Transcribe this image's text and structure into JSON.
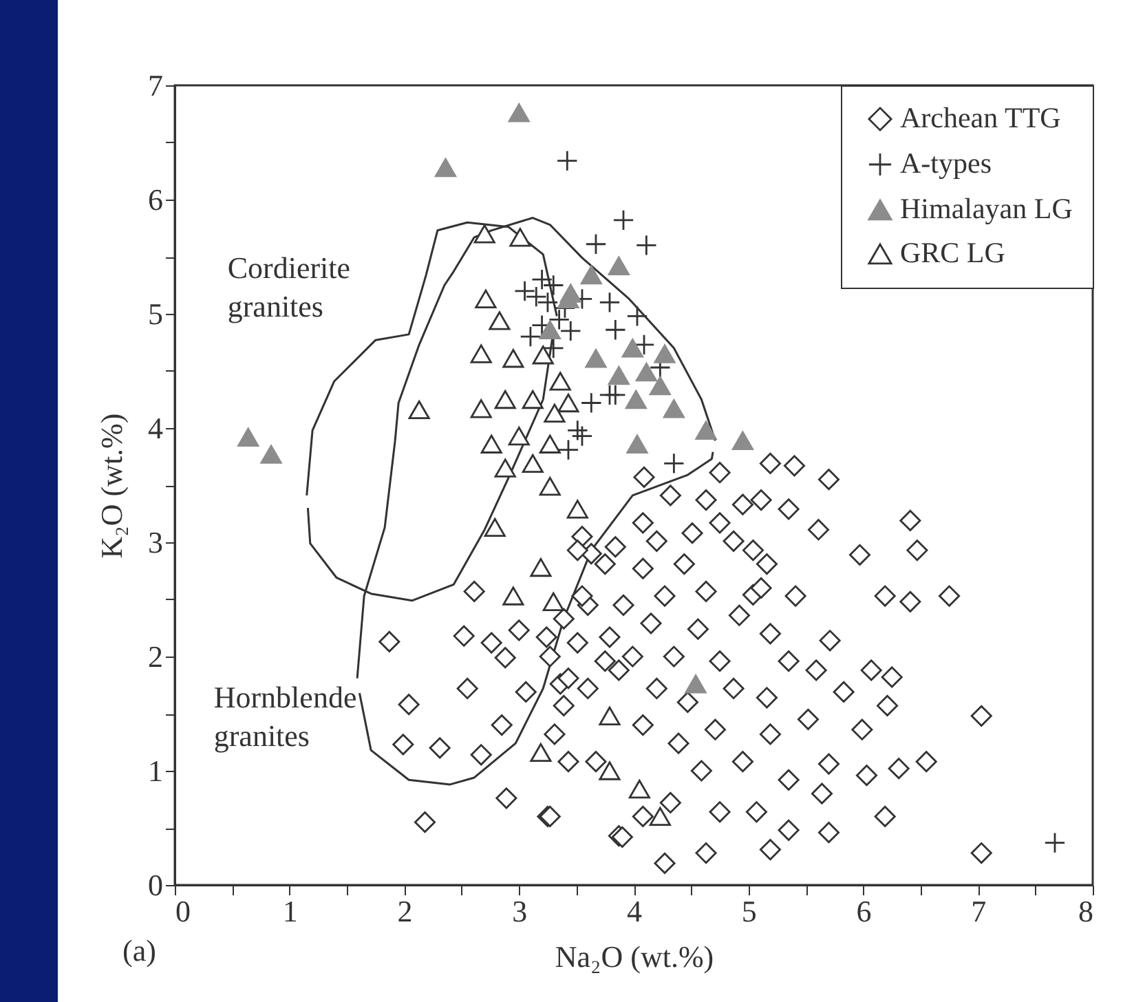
{
  "chart_data": {
    "type": "scatter",
    "xlabel": "Na₂O (wt.%)",
    "ylabel": "K₂O (wt.%)",
    "xlim": [
      0,
      8
    ],
    "ylim": [
      0,
      7
    ],
    "xticks": [
      0,
      {
        "value": 0.5,
        "label": null
      },
      1,
      {
        "value": 1.5,
        "label": null
      },
      2,
      {
        "value": 2.5,
        "label": null
      },
      3,
      {
        "value": 3.5,
        "label": null
      },
      4,
      {
        "value": 4.5,
        "label": null
      },
      5,
      {
        "value": 5.5,
        "label": null
      },
      6,
      {
        "value": 6.5,
        "label": null
      },
      7,
      {
        "value": 7.5,
        "label": null
      },
      8
    ],
    "yticks": [
      0,
      {
        "value": 0.5,
        "label": null
      },
      1,
      {
        "value": 1.5,
        "label": null
      },
      2,
      {
        "value": 2.5,
        "label": null
      },
      3,
      {
        "value": 3.5,
        "label": null
      },
      4,
      {
        "value": 4.5,
        "label": null
      },
      5,
      {
        "value": 5.5,
        "label": null
      },
      6,
      {
        "value": 6.5,
        "label": null
      },
      7
    ],
    "legend": "top right",
    "grid": false,
    "annotations": [
      "(a)",
      "Cordierite granites",
      "Hornblende granites"
    ],
    "series": [
      {
        "type": "line",
        "color": "#333333",
        "line_style": "solid",
        "x": [
          1.15,
          1.2,
          1.39,
          1.75,
          2.04,
          2.19,
          2.29,
          2.55,
          2.91,
          3.21,
          3.33
        ],
        "values": [
          3.41,
          3.98,
          4.41,
          4.77,
          4.82,
          5.34,
          5.73,
          5.8,
          5.76,
          5.52,
          4.98
        ]
      },
      {
        "type": "line",
        "color": "#333333",
        "line_style": "solid",
        "x": [
          1.16,
          1.18,
          1.41,
          1.71,
          2.07,
          2.43,
          2.7,
          2.92,
          3.21,
          3.3
        ],
        "values": [
          3.3,
          2.99,
          2.69,
          2.55,
          2.49,
          2.63,
          3.11,
          3.59,
          4.25,
          4.85
        ]
      },
      {
        "type": "line",
        "color": "#333333",
        "line_style": "solid",
        "x": [
          1.59,
          1.65,
          1.83,
          1.92,
          1.95,
          2.13,
          2.35,
          2.43,
          2.61,
          2.76,
          3.12,
          3.27,
          3.55,
          3.96,
          4.35,
          4.59,
          4.71
        ],
        "values": [
          1.81,
          2.53,
          3.13,
          3.89,
          4.22,
          4.73,
          5.25,
          5.37,
          5.67,
          5.73,
          5.84,
          5.78,
          5.49,
          5.13,
          4.7,
          4.25,
          3.89
        ]
      },
      {
        "type": "line",
        "color": "#333333",
        "line_style": "solid",
        "x": [
          1.61,
          1.71,
          2.04,
          2.4,
          2.61,
          2.97,
          3.21,
          3.39,
          3.63,
          3.99,
          4.47,
          4.68,
          4.69
        ],
        "values": [
          1.68,
          1.18,
          0.92,
          0.88,
          0.94,
          1.24,
          1.72,
          2.33,
          2.93,
          3.41,
          3.59,
          3.73,
          3.79
        ]
      },
      {
        "name": "Archean TTG",
        "color": "#333333",
        "marker": "diamond",
        "x": [
          1.87,
          2.04,
          1.99,
          2.18,
          2.61,
          2.31,
          2.67,
          2.52,
          2.76,
          2.55,
          2.85,
          3.06,
          2.89,
          3.25,
          2.88,
          3.0,
          3.24,
          3.55,
          3.63,
          3.36,
          3.39,
          3.51,
          3.6,
          3.87,
          3.43,
          3.67,
          3.75,
          4.09,
          4.75,
          5.19,
          5.4,
          5.7,
          5.11,
          5.35,
          5.61,
          6.41,
          6.47,
          5.97,
          6.19,
          6.41,
          6.75,
          5.71,
          5.41,
          5.04,
          6.07,
          6.25,
          6.21,
          5.83,
          5.99,
          5.7,
          6.03,
          6.31,
          6.55,
          7.03,
          6.19,
          5.7,
          7.03,
          5.64,
          5.35,
          5.19,
          4.63,
          4.27,
          3.9,
          4.08,
          4.75,
          5.07,
          5.35,
          4.95,
          4.59,
          4.32,
          4.39,
          4.08,
          4.71,
          5.19,
          5.52,
          5.16,
          4.87,
          4.47,
          4.2,
          3.87,
          3.6,
          3.31,
          3.79,
          4.15,
          4.56,
          4.92,
          5.19,
          5.35,
          5.59,
          4.75,
          4.35,
          3.99,
          3.55,
          3.91,
          4.27,
          4.63,
          5.11,
          3.51,
          3.84,
          4.2,
          4.51,
          4.87,
          5.04,
          5.16,
          4.08,
          4.32,
          4.63,
          4.95,
          4.75,
          4.44,
          4.08,
          3.75,
          3.39,
          3.27,
          3.27,
          3.43
        ],
        "values": [
          2.13,
          1.58,
          1.23,
          0.55,
          2.57,
          1.2,
          1.14,
          2.18,
          2.12,
          1.72,
          1.4,
          1.69,
          0.76,
          0.6,
          1.99,
          2.23,
          2.17,
          3.05,
          2.9,
          1.76,
          1.57,
          2.12,
          2.45,
          0.43,
          1.08,
          1.08,
          1.96,
          3.57,
          3.61,
          3.69,
          3.67,
          3.55,
          3.37,
          3.29,
          3.11,
          3.19,
          2.93,
          2.89,
          2.53,
          2.48,
          2.53,
          2.14,
          2.53,
          2.54,
          1.88,
          1.82,
          1.57,
          1.69,
          1.36,
          1.06,
          0.96,
          1.02,
          1.08,
          1.48,
          0.6,
          0.46,
          0.28,
          0.8,
          0.48,
          0.31,
          0.28,
          0.19,
          0.42,
          0.6,
          0.64,
          0.64,
          0.92,
          1.08,
          1.0,
          0.72,
          1.24,
          1.4,
          1.36,
          1.32,
          1.45,
          1.64,
          1.72,
          1.6,
          1.72,
          1.88,
          1.72,
          1.32,
          2.17,
          2.29,
          2.24,
          2.36,
          2.2,
          1.96,
          1.88,
          1.96,
          2.0,
          2.0,
          2.53,
          2.45,
          2.53,
          2.57,
          2.6,
          2.93,
          2.96,
          3.01,
          3.08,
          3.01,
          2.93,
          2.81,
          3.17,
          3.41,
          3.37,
          3.33,
          3.17,
          2.81,
          2.77,
          2.81,
          2.33,
          2.0,
          0.6,
          1.81
        ]
      },
      {
        "name": "A-types",
        "color": "#333333",
        "marker": "cross",
        "x": [
          3.42,
          3.91,
          4.11,
          3.67,
          4.03,
          3.79,
          3.55,
          3.84,
          4.09,
          4.23,
          3.84,
          3.63,
          3.55,
          4.35,
          3.05,
          3.15,
          3.2,
          3.25,
          3.3,
          3.35,
          3.2,
          3.1,
          3.4,
          3.3,
          3.45,
          3.51,
          3.43,
          3.79,
          7.67
        ],
        "values": [
          6.34,
          5.82,
          5.6,
          5.61,
          4.98,
          5.1,
          5.13,
          4.86,
          4.73,
          4.53,
          4.29,
          4.22,
          3.93,
          3.69,
          5.2,
          5.15,
          4.9,
          5.1,
          5.25,
          4.95,
          5.3,
          4.8,
          5.05,
          4.7,
          4.85,
          3.98,
          3.81,
          4.29,
          0.37
        ]
      },
      {
        "name": "Himalayan LG",
        "color": "#8c8c8c",
        "marker": "triangle",
        "x": [
          3.0,
          2.36,
          0.64,
          0.84,
          3.87,
          3.63,
          3.43,
          3.27,
          3.45,
          3.99,
          3.67,
          4.27,
          3.87,
          4.11,
          4.23,
          4.02,
          4.35,
          4.63,
          4.95,
          4.03,
          4.54
        ],
        "values": [
          6.76,
          6.28,
          3.92,
          3.77,
          5.42,
          5.34,
          5.13,
          4.86,
          5.18,
          4.7,
          4.61,
          4.65,
          4.46,
          4.49,
          4.37,
          4.25,
          4.17,
          3.98,
          3.89,
          3.86,
          1.76
        ]
      },
      {
        "name": "GRC LG",
        "color": "#333333",
        "marker": "triangle",
        "x": [
          2.7,
          3.01,
          2.71,
          2.83,
          2.67,
          2.95,
          3.21,
          3.36,
          2.13,
          2.67,
          2.88,
          3.12,
          3.43,
          3.31,
          2.76,
          3.0,
          3.27,
          3.12,
          2.88,
          3.27,
          3.51,
          2.79,
          3.19,
          2.95,
          3.3,
          3.79,
          3.19,
          3.79,
          4.05,
          4.23
        ],
        "values": [
          5.7,
          5.67,
          5.13,
          4.94,
          4.65,
          4.61,
          4.64,
          4.41,
          4.16,
          4.17,
          4.25,
          4.25,
          4.22,
          4.13,
          3.86,
          3.93,
          3.86,
          3.69,
          3.65,
          3.49,
          3.29,
          3.13,
          2.78,
          2.53,
          2.48,
          1.48,
          1.16,
          1.0,
          0.84,
          0.6
        ]
      }
    ]
  }
}
